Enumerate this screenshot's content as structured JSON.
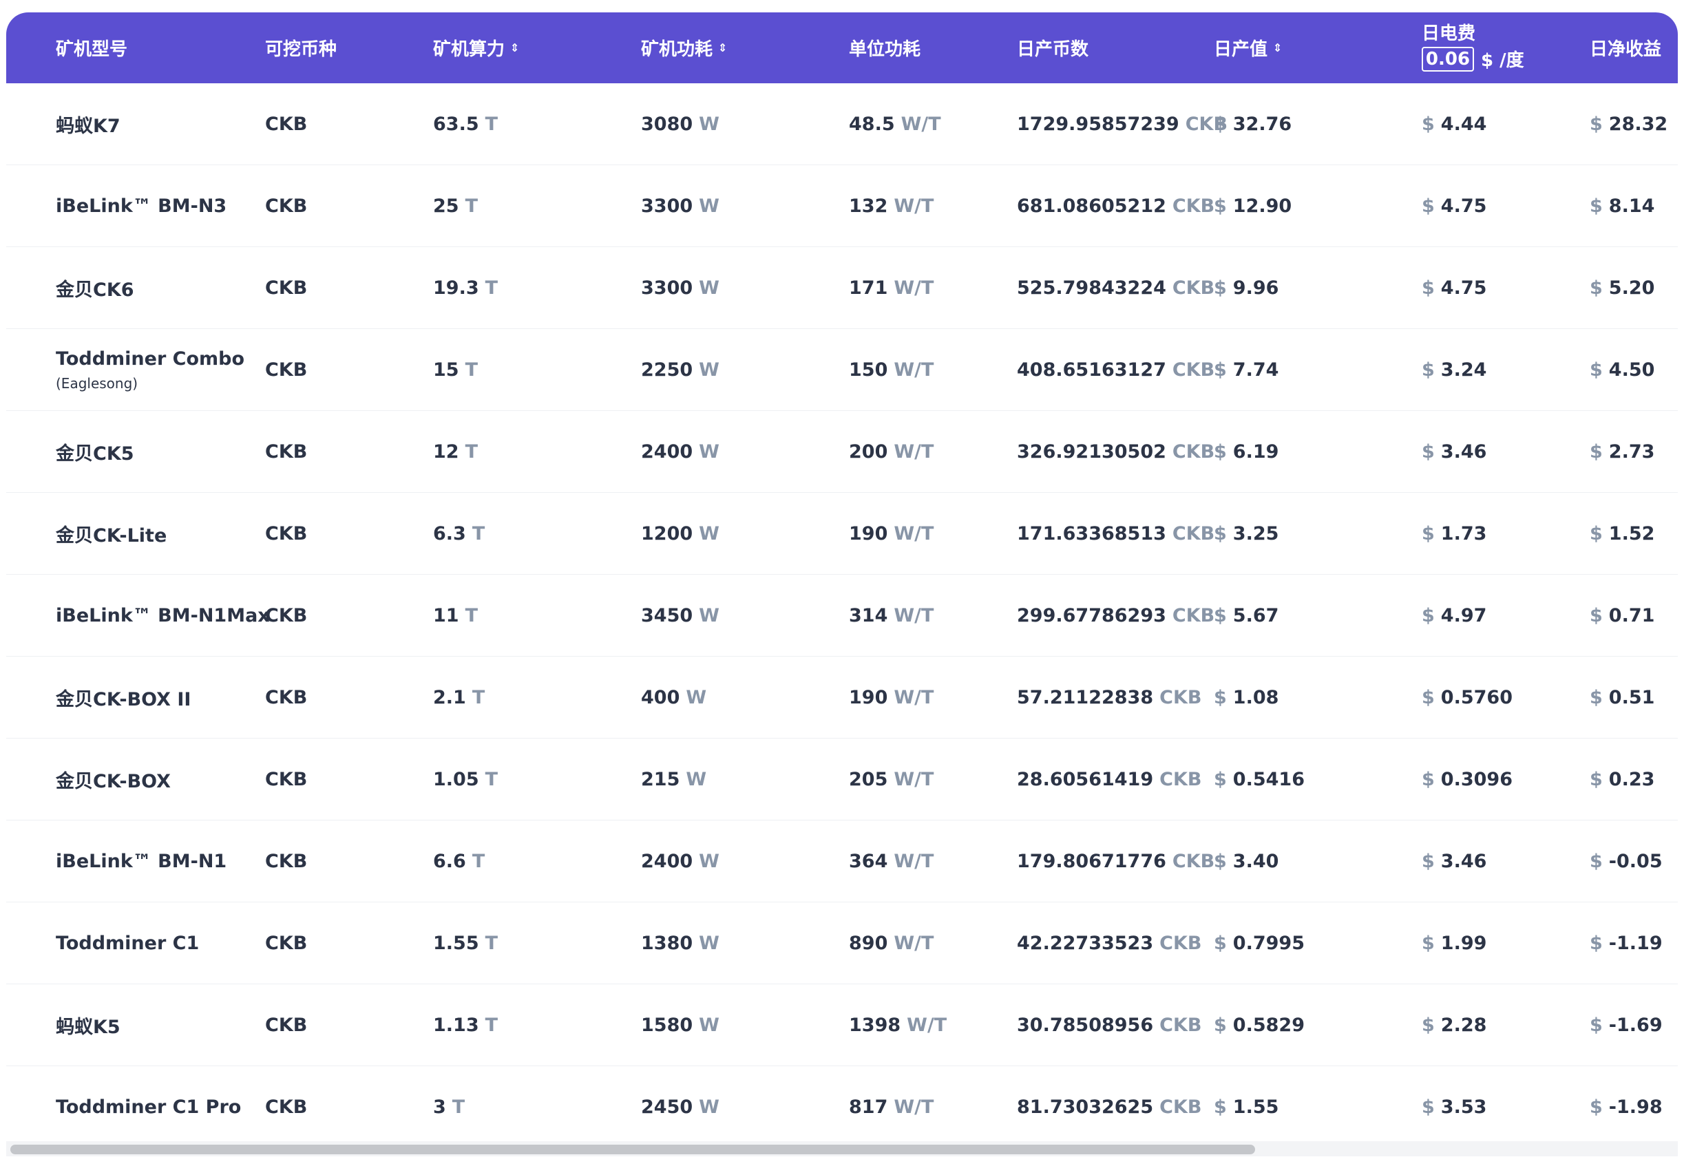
{
  "headers": {
    "model": "矿机型号",
    "coin": "可挖币种",
    "hashrate": "矿机算力",
    "power": "矿机功耗",
    "efficiency": "单位功耗",
    "daily_coins": "日产币数",
    "daily_value": "日产值",
    "electricity": "日电费",
    "electricity_price": "0.06",
    "electricity_unit": "$ /度",
    "net_profit": "日净收益"
  },
  "sort_icon": "⇕",
  "units": {
    "hashrate": "T",
    "power": "W",
    "efficiency": "W/T",
    "coin": "CKB",
    "currency": "$"
  },
  "rows": [
    {
      "model": "蚂蚁K7",
      "sub": "",
      "coin": "CKB",
      "hashrate": "63.5",
      "power": "3080",
      "efficiency": "48.5",
      "daily_coins": "1729.95857239",
      "daily_value": "32.76",
      "electricity": "4.44",
      "net": "28.32"
    },
    {
      "model": "iBeLink™ BM-N3",
      "sub": "",
      "coin": "CKB",
      "hashrate": "25",
      "power": "3300",
      "efficiency": "132",
      "daily_coins": "681.08605212",
      "daily_value": "12.90",
      "electricity": "4.75",
      "net": "8.14"
    },
    {
      "model": "金贝CK6",
      "sub": "",
      "coin": "CKB",
      "hashrate": "19.3",
      "power": "3300",
      "efficiency": "171",
      "daily_coins": "525.79843224",
      "daily_value": "9.96",
      "electricity": "4.75",
      "net": "5.20"
    },
    {
      "model": "Toddminer Combo",
      "sub": "(Eaglesong)",
      "coin": "CKB",
      "hashrate": "15",
      "power": "2250",
      "efficiency": "150",
      "daily_coins": "408.65163127",
      "daily_value": "7.74",
      "electricity": "3.24",
      "net": "4.50"
    },
    {
      "model": "金贝CK5",
      "sub": "",
      "coin": "CKB",
      "hashrate": "12",
      "power": "2400",
      "efficiency": "200",
      "daily_coins": "326.92130502",
      "daily_value": "6.19",
      "electricity": "3.46",
      "net": "2.73"
    },
    {
      "model": "金贝CK-Lite",
      "sub": "",
      "coin": "CKB",
      "hashrate": "6.3",
      "power": "1200",
      "efficiency": "190",
      "daily_coins": "171.63368513",
      "daily_value": "3.25",
      "electricity": "1.73",
      "net": "1.52"
    },
    {
      "model": "iBeLink™ BM-N1Max",
      "sub": "",
      "coin": "CKB",
      "hashrate": "11",
      "power": "3450",
      "efficiency": "314",
      "daily_coins": "299.67786293",
      "daily_value": "5.67",
      "electricity": "4.97",
      "net": "0.71"
    },
    {
      "model": "金贝CK-BOX II",
      "sub": "",
      "coin": "CKB",
      "hashrate": "2.1",
      "power": "400",
      "efficiency": "190",
      "daily_coins": "57.21122838",
      "daily_value": "1.08",
      "electricity": "0.5760",
      "net": "0.51"
    },
    {
      "model": "金贝CK-BOX",
      "sub": "",
      "coin": "CKB",
      "hashrate": "1.05",
      "power": "215",
      "efficiency": "205",
      "daily_coins": "28.60561419",
      "daily_value": "0.5416",
      "electricity": "0.3096",
      "net": "0.23"
    },
    {
      "model": "iBeLink™ BM-N1",
      "sub": "",
      "coin": "CKB",
      "hashrate": "6.6",
      "power": "2400",
      "efficiency": "364",
      "daily_coins": "179.80671776",
      "daily_value": "3.40",
      "electricity": "3.46",
      "net": "-0.05"
    },
    {
      "model": "Toddminer C1",
      "sub": "",
      "coin": "CKB",
      "hashrate": "1.55",
      "power": "1380",
      "efficiency": "890",
      "daily_coins": "42.22733523",
      "daily_value": "0.7995",
      "electricity": "1.99",
      "net": "-1.19"
    },
    {
      "model": "蚂蚁K5",
      "sub": "",
      "coin": "CKB",
      "hashrate": "1.13",
      "power": "1580",
      "efficiency": "1398",
      "daily_coins": "30.78508956",
      "daily_value": "0.5829",
      "electricity": "2.28",
      "net": "-1.69"
    },
    {
      "model": "Toddminer C1 Pro",
      "sub": "",
      "coin": "CKB",
      "hashrate": "3",
      "power": "2450",
      "efficiency": "817",
      "daily_coins": "81.73032625",
      "daily_value": "1.55",
      "electricity": "3.53",
      "net": "-1.98"
    }
  ]
}
